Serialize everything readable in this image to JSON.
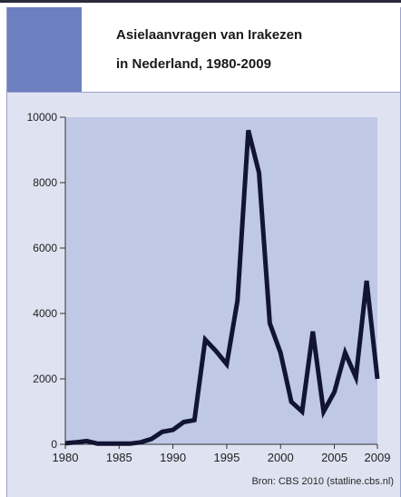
{
  "title_line1": "Asielaanvragen van Irakezen",
  "title_line2": "in Nederland, 1980-2009",
  "source": "Bron: CBS 2010 (statline.cbs.nl)",
  "colors": {
    "accent_block": "#6d7fbf",
    "plot_background": "#bfc8e6",
    "panel_background": "#dfe2f1",
    "line": "#121433"
  },
  "chart_data": {
    "type": "line",
    "title": "Asielaanvragen van Irakezen in Nederland, 1980-2009",
    "xlabel": "",
    "ylabel": "",
    "xlim": [
      1980,
      2009
    ],
    "ylim": [
      0,
      10000
    ],
    "x_ticks": [
      "1980",
      "1985",
      "1990",
      "1995",
      "2000",
      "2005",
      "2009"
    ],
    "y_ticks": [
      "0",
      "2000",
      "4000",
      "6000",
      "8000",
      "10000"
    ],
    "grid": false,
    "series": [
      {
        "x": [
          1980,
          1981,
          1982,
          1983,
          1984,
          1985,
          1986,
          1987,
          1988,
          1989,
          1990,
          1991,
          1992,
          1993,
          1994,
          1995,
          1996,
          1997,
          1998,
          1999,
          2000,
          2001,
          2002,
          2003,
          2004,
          2005,
          2006,
          2007,
          2008,
          2009
        ],
        "values": [
          30,
          60,
          100,
          20,
          20,
          20,
          20,
          60,
          160,
          380,
          440,
          680,
          740,
          3200,
          2850,
          2450,
          4400,
          9600,
          8300,
          3700,
          2800,
          1300,
          1000,
          3450,
          1000,
          1600,
          2800,
          2050,
          5000,
          2000
        ]
      }
    ]
  }
}
